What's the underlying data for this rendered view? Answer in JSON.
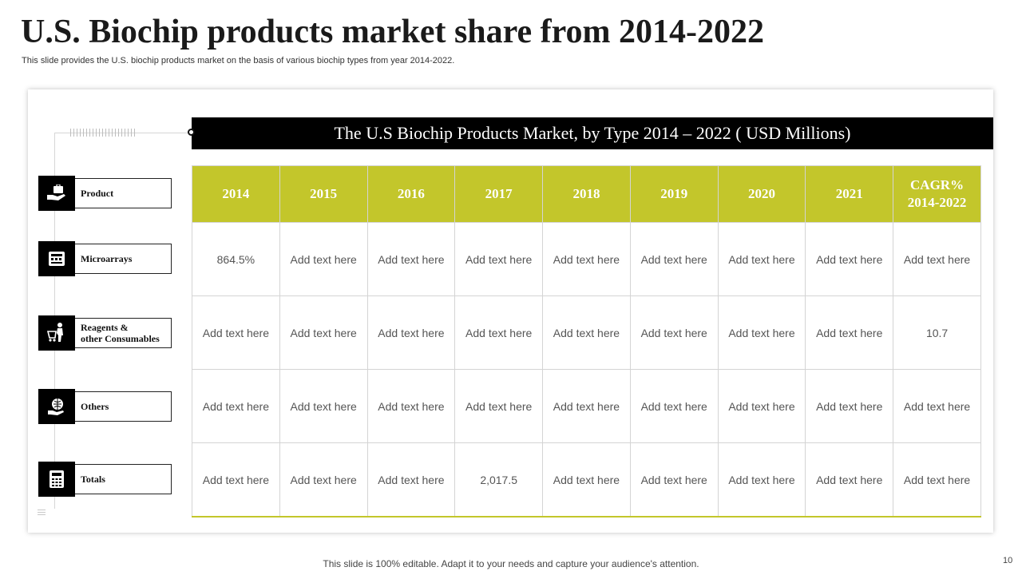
{
  "header": {
    "title": "U.S. Biochip products market share from 2014-2022",
    "subtitle": "This slide provides the U.S. biochip products market on the basis of various biochip types from year 2014-2022."
  },
  "table_title": "The U.S Biochip Products Market, by Type 2014 – 2022 ( USD Millions)",
  "categories": [
    {
      "label_line1": "Product",
      "label_line2": "",
      "icon": "hand-briefcase-icon"
    },
    {
      "label_line1": "Microarrays",
      "label_line2": "",
      "icon": "microarray-chip-icon"
    },
    {
      "label_line1": "Reagents &",
      "label_line2": "other Consumables",
      "icon": "person-cart-icon"
    },
    {
      "label_line1": "Others",
      "label_line2": "",
      "icon": "hand-globe-icon"
    },
    {
      "label_line1": "Totals",
      "label_line2": "",
      "icon": "calculator-icon"
    }
  ],
  "table": {
    "headers": [
      {
        "line1": "2014",
        "line2": ""
      },
      {
        "line1": "2015",
        "line2": ""
      },
      {
        "line1": "2016",
        "line2": ""
      },
      {
        "line1": "2017",
        "line2": ""
      },
      {
        "line1": "2018",
        "line2": ""
      },
      {
        "line1": "2019",
        "line2": ""
      },
      {
        "line1": "2020",
        "line2": ""
      },
      {
        "line1": "2021",
        "line2": ""
      },
      {
        "line1": "CAGR%",
        "line2": "2014-2022"
      }
    ],
    "rows": [
      [
        "864.5%",
        "Add text here",
        "Add text here",
        "Add text here",
        "Add text here",
        "Add text here",
        "Add text here",
        "Add text here",
        "Add text here"
      ],
      [
        "Add text here",
        "Add text here",
        "Add text here",
        "Add text here",
        "Add text here",
        "Add text here",
        "Add text here",
        "Add text here",
        "10.7"
      ],
      [
        "Add text here",
        "Add text here",
        "Add text here",
        "Add text here",
        "Add text here",
        "Add text here",
        "Add text here",
        "Add text here",
        "Add text here"
      ],
      [
        "Add text here",
        "Add text here",
        "Add text here",
        "2,017.5",
        "Add text here",
        "Add text here",
        "Add text here",
        "Add text here",
        "Add text here"
      ]
    ]
  },
  "footer": "This slide is 100% editable. Adapt it to your needs and capture your audience's attention.",
  "page_number": "10",
  "colors": {
    "accent": "#c3c62b",
    "title_bar": "#000000",
    "grid_line": "#d4d4d4"
  }
}
